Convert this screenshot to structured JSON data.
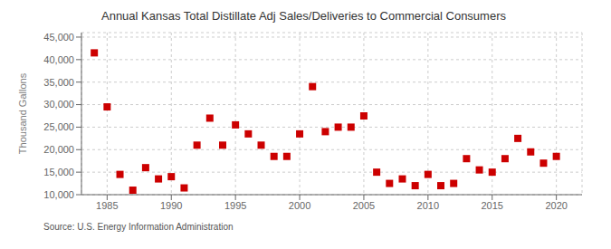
{
  "chart_data": {
    "type": "scatter",
    "title": "Annual Kansas Total Distillate Adj Sales/Deliveries to Commercial Consumers",
    "ylabel": "Thousand Gallons",
    "annotations": [
      "Source: U.S. Energy Information Administration"
    ],
    "x": [
      1984,
      1985,
      1986,
      1987,
      1988,
      1989,
      1990,
      1991,
      1992,
      1993,
      1994,
      1995,
      1996,
      1997,
      1998,
      1999,
      2000,
      2001,
      2002,
      2003,
      2004,
      2005,
      2006,
      2007,
      2008,
      2009,
      2010,
      2011,
      2012,
      2013,
      2014,
      2015,
      2016,
      2017,
      2018,
      2019,
      2020
    ],
    "values": [
      41500,
      29500,
      14500,
      11000,
      16000,
      13500,
      14000,
      11500,
      21000,
      27000,
      21000,
      25500,
      23500,
      21000,
      18500,
      18500,
      23500,
      34000,
      24000,
      25000,
      25000,
      27500,
      15000,
      12500,
      13500,
      12000,
      14500,
      12000,
      12500,
      18000,
      15500,
      15000,
      18000,
      22500,
      19500,
      17000,
      18500
    ],
    "color": "#cc0000",
    "marker": "square",
    "xlim": [
      1983,
      2022
    ],
    "ylim": [
      10000,
      46000
    ],
    "xticks": [
      1985,
      1990,
      1995,
      2000,
      2005,
      2010,
      2015,
      2020
    ],
    "yticks": [
      {
        "value": 10000,
        "label": "10,000"
      },
      {
        "value": 15000,
        "label": "15,000"
      },
      {
        "value": 20000,
        "label": "20,000"
      },
      {
        "value": 25000,
        "label": "25,000"
      },
      {
        "value": 30000,
        "label": "30,000"
      },
      {
        "value": 35000,
        "label": "35,000"
      },
      {
        "value": 40000,
        "label": "40,000"
      },
      {
        "value": 45000,
        "label": "45,000"
      }
    ],
    "grid": true
  }
}
